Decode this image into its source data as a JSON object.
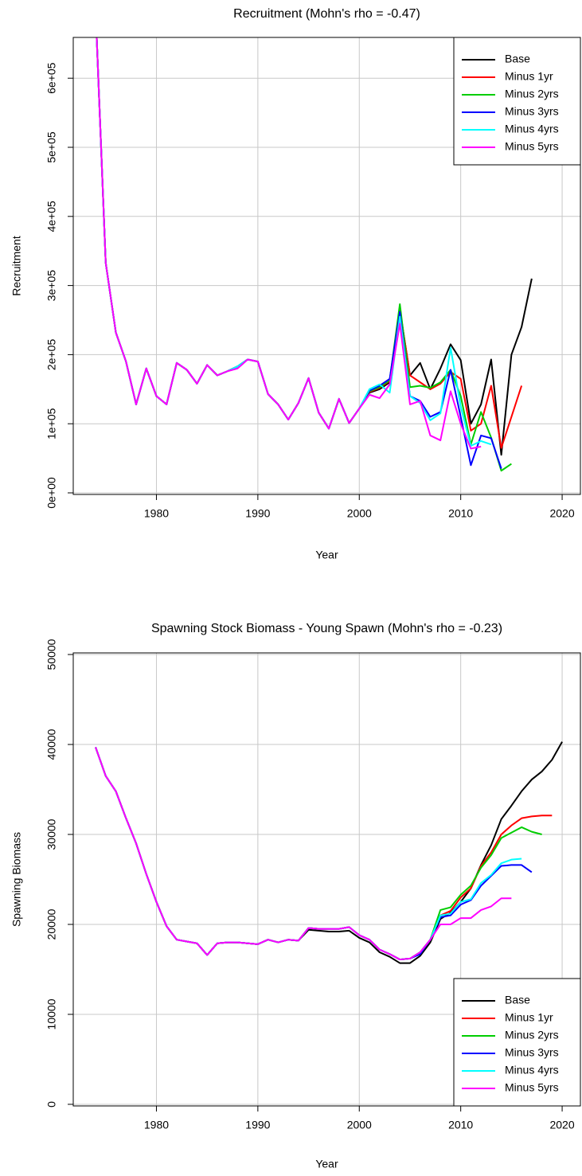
{
  "chart_data": [
    {
      "type": "line",
      "title": "Recruitment (Mohn's rho = -0.47)",
      "xlabel": "Year",
      "ylabel": "Recruitment",
      "x": [
        1974,
        1975,
        1976,
        1977,
        1978,
        1979,
        1980,
        1981,
        1982,
        1983,
        1984,
        1985,
        1986,
        1987,
        1988,
        1989,
        1990,
        1991,
        1992,
        1993,
        1994,
        1995,
        1996,
        1997,
        1998,
        1999,
        2000,
        2001,
        2002,
        2003,
        2004,
        2005,
        2006,
        2007,
        2008,
        2009,
        2010,
        2011,
        2012,
        2013,
        2014,
        2015,
        2016,
        2017
      ],
      "series": [
        {
          "name": "Base",
          "color": "#000000",
          "values": [
            700000,
            333000,
            232000,
            190000,
            128000,
            180000,
            140000,
            128000,
            188000,
            178000,
            158000,
            185000,
            170000,
            176000,
            183000,
            193000,
            190000,
            143000,
            128000,
            106000,
            130000,
            166000,
            116000,
            93000,
            136000,
            101000,
            122000,
            145000,
            150000,
            160000,
            265000,
            170000,
            188000,
            150000,
            180000,
            215000,
            192000,
            100000,
            128000,
            193000,
            55000,
            200000,
            240000,
            310000
          ]
        },
        {
          "name": "Minus 1yr",
          "color": "#ff0000",
          "values": [
            700000,
            333000,
            232000,
            190000,
            128000,
            180000,
            140000,
            128000,
            188000,
            178000,
            158000,
            185000,
            170000,
            176000,
            183000,
            193000,
            190000,
            143000,
            128000,
            106000,
            130000,
            166000,
            116000,
            93000,
            136000,
            101000,
            122000,
            146000,
            152000,
            162000,
            265000,
            170000,
            160000,
            150000,
            158000,
            175000,
            165000,
            90000,
            100000,
            155000,
            65000,
            110000,
            155000,
            null
          ]
        },
        {
          "name": "Minus 2yrs",
          "color": "#00cd00",
          "values": [
            700000,
            333000,
            232000,
            190000,
            128000,
            180000,
            140000,
            128000,
            188000,
            178000,
            158000,
            185000,
            170000,
            176000,
            183000,
            193000,
            190000,
            143000,
            128000,
            106000,
            130000,
            166000,
            116000,
            93000,
            136000,
            101000,
            122000,
            147000,
            153000,
            163000,
            273000,
            153000,
            155000,
            152000,
            160000,
            178000,
            140000,
            70000,
            117000,
            80000,
            32000,
            42000,
            null,
            null
          ]
        },
        {
          "name": "Minus 3yrs",
          "color": "#0000ff",
          "values": [
            700000,
            333000,
            232000,
            190000,
            128000,
            180000,
            140000,
            128000,
            188000,
            178000,
            158000,
            185000,
            170000,
            176000,
            183000,
            193000,
            190000,
            143000,
            128000,
            106000,
            130000,
            166000,
            116000,
            93000,
            136000,
            101000,
            122000,
            148000,
            155000,
            165000,
            262000,
            140000,
            133000,
            110000,
            117000,
            178000,
            110000,
            40000,
            83000,
            79000,
            35000,
            null,
            null,
            null
          ]
        },
        {
          "name": "Minus 4yrs",
          "color": "#00ffff",
          "values": [
            700000,
            333000,
            232000,
            190000,
            128000,
            180000,
            140000,
            128000,
            188000,
            178000,
            158000,
            185000,
            170000,
            176000,
            183000,
            193000,
            190000,
            143000,
            128000,
            106000,
            130000,
            166000,
            116000,
            93000,
            136000,
            101000,
            122000,
            150000,
            157000,
            145000,
            255000,
            140000,
            130000,
            105000,
            115000,
            210000,
            125000,
            68000,
            75000,
            70000,
            null,
            null,
            null,
            null
          ]
        },
        {
          "name": "Minus 5yrs",
          "color": "#ff00ff",
          "values": [
            700000,
            333000,
            232000,
            190000,
            128000,
            180000,
            140000,
            128000,
            188000,
            178000,
            158000,
            185000,
            170000,
            176000,
            180000,
            193000,
            190000,
            143000,
            128000,
            106000,
            130000,
            166000,
            116000,
            93000,
            136000,
            101000,
            122000,
            142000,
            137000,
            157000,
            245000,
            128000,
            133000,
            83000,
            76000,
            147000,
            100000,
            64000,
            67000,
            null,
            null,
            null,
            null,
            null
          ]
        }
      ],
      "xlim": [
        1971.8,
        2021.8
      ],
      "ylim": [
        -2300,
        659000
      ],
      "xticks": [
        1980,
        1990,
        2000,
        2010,
        2020
      ],
      "yticks": [
        {
          "value": 0,
          "label": "0e+00"
        },
        {
          "value": 100000,
          "label": "1e+05"
        },
        {
          "value": 200000,
          "label": "2e+05"
        },
        {
          "value": 300000,
          "label": "3e+05"
        },
        {
          "value": 400000,
          "label": "4e+05"
        },
        {
          "value": 500000,
          "label": "5e+05"
        },
        {
          "value": 600000,
          "label": "6e+05"
        }
      ],
      "grid": true,
      "legend": "topright"
    },
    {
      "type": "line",
      "title": "Spawning Stock Biomass - Young Spawn (Mohn's rho = -0.23)",
      "xlabel": "Year",
      "ylabel": "Spawning Biomass",
      "x": [
        1974,
        1975,
        1976,
        1977,
        1978,
        1979,
        1980,
        1981,
        1982,
        1983,
        1984,
        1985,
        1986,
        1987,
        1988,
        1989,
        1990,
        1991,
        1992,
        1993,
        1994,
        1995,
        1996,
        1997,
        1998,
        1999,
        2000,
        2001,
        2002,
        2003,
        2004,
        2005,
        2006,
        2007,
        2008,
        2009,
        2010,
        2011,
        2012,
        2013,
        2014,
        2015,
        2016,
        2017,
        2018,
        2019,
        2020
      ],
      "series": [
        {
          "name": "Base",
          "color": "#000000",
          "values": [
            39700,
            36500,
            34800,
            31800,
            29000,
            25600,
            22500,
            19800,
            18300,
            18100,
            17900,
            16600,
            17900,
            18000,
            18000,
            17900,
            17800,
            18300,
            18000,
            18300,
            18200,
            19400,
            19300,
            19200,
            19200,
            19300,
            18500,
            18000,
            16900,
            16400,
            15700,
            15700,
            16500,
            18000,
            20600,
            21300,
            22500,
            24000,
            26600,
            28800,
            31700,
            33200,
            34800,
            36100,
            37000,
            38300,
            40300
          ]
        },
        {
          "name": "Minus 1yr",
          "color": "#ff0000",
          "values": [
            39700,
            36500,
            34800,
            31800,
            29000,
            25600,
            22500,
            19800,
            18300,
            18100,
            17900,
            16600,
            17900,
            18000,
            18000,
            17900,
            17800,
            18300,
            18000,
            18300,
            18200,
            19600,
            19500,
            19500,
            19500,
            19700,
            18800,
            18300,
            17200,
            16700,
            16100,
            16200,
            16900,
            18300,
            21000,
            21500,
            23000,
            24000,
            26500,
            28000,
            30000,
            31000,
            31800,
            32000,
            32100,
            32100,
            null
          ]
        },
        {
          "name": "Minus 2yrs",
          "color": "#00cd00",
          "values": [
            39700,
            36500,
            34800,
            31800,
            29000,
            25600,
            22500,
            19800,
            18300,
            18100,
            17900,
            16600,
            17900,
            18000,
            18000,
            17900,
            17800,
            18300,
            18000,
            18300,
            18200,
            19600,
            19500,
            19500,
            19500,
            19700,
            18800,
            18300,
            17200,
            16700,
            16100,
            16200,
            16900,
            18300,
            21600,
            21900,
            23300,
            24300,
            26300,
            27700,
            29600,
            30200,
            30800,
            30300,
            30000,
            null,
            null
          ]
        },
        {
          "name": "Minus 3yrs",
          "color": "#0000ff",
          "values": [
            39700,
            36500,
            34800,
            31800,
            29000,
            25600,
            22500,
            19800,
            18300,
            18100,
            17900,
            16600,
            17900,
            18000,
            18000,
            17900,
            17800,
            18300,
            18000,
            18300,
            18200,
            19600,
            19500,
            19500,
            19500,
            19700,
            18800,
            18300,
            17200,
            16700,
            16100,
            16200,
            16700,
            18300,
            20800,
            21000,
            22200,
            22700,
            24300,
            25400,
            26500,
            26600,
            26600,
            25800,
            null,
            null,
            null
          ]
        },
        {
          "name": "Minus 4yrs",
          "color": "#00ffff",
          "values": [
            39700,
            36500,
            34800,
            31800,
            29000,
            25600,
            22500,
            19800,
            18300,
            18100,
            17900,
            16600,
            17900,
            18000,
            18000,
            17900,
            17800,
            18300,
            18000,
            18300,
            18200,
            19600,
            19500,
            19500,
            19500,
            19700,
            18800,
            18300,
            17200,
            16700,
            16100,
            16200,
            16900,
            18300,
            21000,
            21200,
            22500,
            22800,
            24600,
            25500,
            26800,
            27200,
            27300,
            null,
            null,
            null,
            null
          ]
        },
        {
          "name": "Minus 5yrs",
          "color": "#ff00ff",
          "values": [
            39700,
            36500,
            34800,
            31800,
            29000,
            25600,
            22500,
            19800,
            18300,
            18100,
            17900,
            16600,
            17900,
            18000,
            18000,
            17900,
            17800,
            18300,
            18000,
            18300,
            18200,
            19600,
            19500,
            19500,
            19500,
            19700,
            18800,
            18300,
            17200,
            16700,
            16100,
            16200,
            16900,
            18300,
            20000,
            20000,
            20700,
            20700,
            21600,
            22000,
            22900,
            22900,
            null,
            null,
            null,
            null,
            null
          ]
        }
      ],
      "xlim": [
        1971.8,
        2021.8
      ],
      "ylim": [
        -180,
        50180
      ],
      "xticks": [
        1980,
        1990,
        2000,
        2010,
        2020
      ],
      "yticks": [
        0,
        10000,
        20000,
        30000,
        40000,
        50000
      ],
      "grid": true,
      "legend": "bottomright"
    }
  ]
}
